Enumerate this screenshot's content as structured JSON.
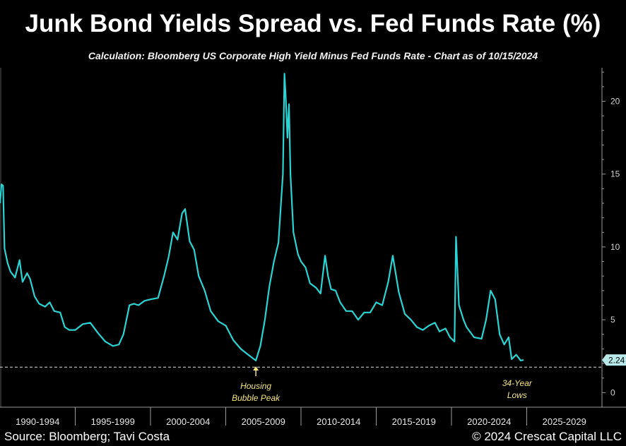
{
  "header": {
    "title": "Junk Bond Yields Spread vs. Fed Funds Rate (%)",
    "subtitle": "Calculation: Bloomberg US Corporate High Yield Minus Fed Funds Rate - Chart as of 10/15/2024"
  },
  "footer": {
    "source": "Source: Bloomberg; Tavi Costa",
    "credit": "© 2024 Crescat Capital LLC"
  },
  "colors": {
    "line": "#2ad4d4",
    "annotation": "#f5e57a",
    "axis": "#9a9a9a",
    "background": "#000000"
  },
  "chart_data": {
    "type": "line",
    "title": "Junk Bond Yields Spread vs. Fed Funds Rate (%)",
    "xlabel": "",
    "ylabel": "",
    "xlim": [
      1990.0,
      2030.0
    ],
    "ylim": [
      -1.0,
      22.3
    ],
    "y_ticks": [
      0,
      5,
      10,
      15,
      20
    ],
    "grid": false,
    "x_categories": [
      "1990-1994",
      "1995-1999",
      "2000-2004",
      "2005-2009",
      "2010-2014",
      "2015-2019",
      "2020-2024",
      "2025-2029"
    ],
    "series": [
      {
        "x": [
          1990.0,
          1990.1,
          1990.2,
          1990.3,
          1990.5,
          1990.7,
          1991.0,
          1991.3,
          1991.5,
          1991.8,
          1992.0,
          1992.3,
          1992.6,
          1993.0,
          1993.3,
          1993.6,
          1994.0,
          1994.3,
          1994.6,
          1995.0,
          1995.5,
          1996.0,
          1996.5,
          1997.0,
          1997.5,
          1997.9,
          1998.2,
          1998.6,
          1998.9,
          1999.2,
          1999.6,
          2000.0,
          2000.5,
          2000.9,
          2001.2,
          2001.5,
          2001.8,
          2002.1,
          2002.3,
          2002.6,
          2002.9,
          2003.2,
          2003.6,
          2004.0,
          2004.5,
          2005.0,
          2005.5,
          2006.0,
          2006.5,
          2007.0,
          2007.3,
          2007.6,
          2007.9,
          2008.2,
          2008.5,
          2008.8,
          2008.9,
          2009.0,
          2009.1,
          2009.2,
          2009.3,
          2009.5,
          2009.8,
          2010.0,
          2010.3,
          2010.6,
          2011.0,
          2011.3,
          2011.6,
          2011.8,
          2012.0,
          2012.3,
          2012.6,
          2013.0,
          2013.4,
          2013.8,
          2014.2,
          2014.6,
          2015.0,
          2015.4,
          2015.8,
          2016.1,
          2016.5,
          2016.9,
          2017.3,
          2017.7,
          2018.1,
          2018.5,
          2018.9,
          2019.2,
          2019.6,
          2019.9,
          2020.1,
          2020.2,
          2020.3,
          2020.5,
          2020.8,
          2021.0,
          2021.5,
          2022.0,
          2022.3,
          2022.6,
          2022.9,
          2023.2,
          2023.5,
          2023.8,
          2024.0,
          2024.3,
          2024.6,
          2024.79
        ],
        "values": [
          13.0,
          14.3,
          14.2,
          9.9,
          8.9,
          8.3,
          7.9,
          9.1,
          7.6,
          8.2,
          7.8,
          6.6,
          6.1,
          5.9,
          6.2,
          5.6,
          5.5,
          4.5,
          4.3,
          4.3,
          4.7,
          4.8,
          4.1,
          3.5,
          3.2,
          3.3,
          4.0,
          6.0,
          6.1,
          6.0,
          6.3,
          6.4,
          6.5,
          8.0,
          9.3,
          11.0,
          10.5,
          12.3,
          12.6,
          10.4,
          9.8,
          8.0,
          7.0,
          5.6,
          4.9,
          4.6,
          3.6,
          3.0,
          2.6,
          2.2,
          3.2,
          5.0,
          7.3,
          9.0,
          10.3,
          15.0,
          21.9,
          20.0,
          17.5,
          19.8,
          15.0,
          11.0,
          9.5,
          9.0,
          8.6,
          7.5,
          7.2,
          6.8,
          9.4,
          8.0,
          7.1,
          7.0,
          6.2,
          5.6,
          5.6,
          5.0,
          5.5,
          5.5,
          6.2,
          6.0,
          7.6,
          9.4,
          6.9,
          5.4,
          5.0,
          4.5,
          4.3,
          4.6,
          4.8,
          4.2,
          4.4,
          3.8,
          3.6,
          3.5,
          10.7,
          6.0,
          5.0,
          4.5,
          3.8,
          3.7,
          5.0,
          7.0,
          6.4,
          4.0,
          3.3,
          3.8,
          2.3,
          2.6,
          2.2,
          2.24
        ]
      }
    ],
    "reference_line": {
      "y": 1.75,
      "style": "dashed"
    },
    "last_value_label": "2.24",
    "annotations": [
      {
        "text_lines": [
          "Housing",
          "Bubble Peak"
        ],
        "x": 2007.0,
        "y": 2.2,
        "arrow": true
      },
      {
        "text_lines": [
          "34-Year",
          "Lows"
        ],
        "x": 2024.5,
        "y": 2.24,
        "arrow": false
      }
    ]
  }
}
